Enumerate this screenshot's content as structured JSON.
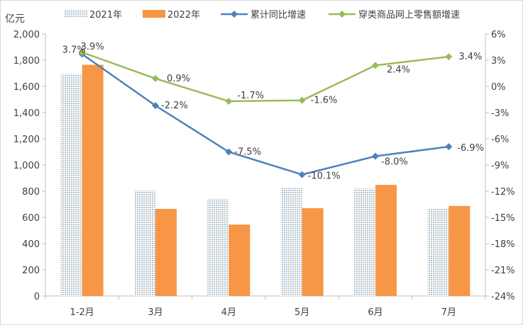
{
  "chart_data": {
    "type": "bar+line",
    "y_left_label": "亿元",
    "y_left_lim": [
      0,
      2000
    ],
    "y_left_ticks": [
      "0",
      "200",
      "400",
      "600",
      "800",
      "1,000",
      "1,200",
      "1,400",
      "1,600",
      "1,800",
      "2,000"
    ],
    "y_right_lim": [
      -24,
      6
    ],
    "y_right_ticks": [
      "-24%",
      "-21%",
      "-18%",
      "-15%",
      "-12%",
      "-9%",
      "-6%",
      "-3%",
      "0%",
      "3%",
      "6%"
    ],
    "categories": [
      "1-2月",
      "3月",
      "4月",
      "5月",
      "6月",
      "7月"
    ],
    "bar_series": [
      {
        "name": "2021年",
        "values": [
          1695,
          805,
          740,
          825,
          820,
          665
        ],
        "color": "#c9d6de",
        "pattern": "dotted"
      },
      {
        "name": "2022年",
        "values": [
          1765,
          665,
          545,
          670,
          848,
          687
        ],
        "color": "#f79646"
      }
    ],
    "line_series": [
      {
        "name": "累计同比增速",
        "values": [
          3.7,
          -2.2,
          -7.5,
          -10.1,
          -8.0,
          -6.9
        ],
        "labels": [
          "3.7%",
          "-2.2%",
          "-7.5%",
          "-10.1%",
          "-8.0%",
          "-6.9%"
        ],
        "color": "#4f81bd"
      },
      {
        "name": "穿类商品网上零售额增速",
        "values": [
          3.9,
          0.9,
          -1.7,
          -1.6,
          2.4,
          3.4
        ],
        "labels": [
          "3.9%",
          "0.9%",
          "-1.7%",
          "-1.6%",
          "2.4%",
          "3.4%"
        ],
        "color": "#9bbb59"
      }
    ],
    "legend_position": "top"
  }
}
